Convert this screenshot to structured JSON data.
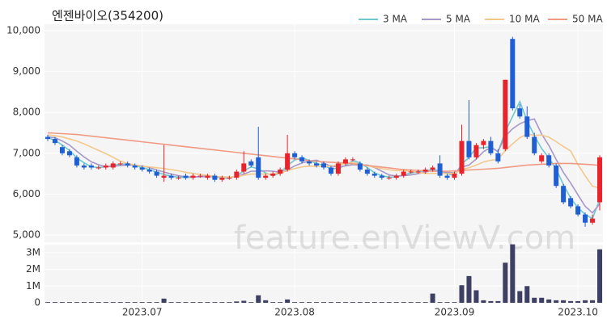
{
  "chart_data": {
    "type": "candlestick",
    "title": "엔젠바이오(354200)",
    "watermark": "feature.enViewV.com",
    "categories": [
      null,
      null,
      null,
      null,
      null,
      null,
      null,
      null,
      null,
      null,
      null,
      null,
      null,
      "2023.07",
      null,
      null,
      null,
      null,
      null,
      null,
      null,
      null,
      null,
      null,
      null,
      null,
      null,
      null,
      null,
      null,
      null,
      null,
      null,
      null,
      "2023.08",
      null,
      null,
      null,
      null,
      null,
      null,
      null,
      null,
      null,
      null,
      null,
      null,
      null,
      null,
      null,
      null,
      null,
      null,
      null,
      null,
      null,
      "2023.09",
      null,
      null,
      null,
      null,
      null,
      null,
      null,
      null,
      null,
      null,
      null,
      null,
      null,
      null,
      null,
      null,
      "2023.10",
      null,
      null,
      null
    ],
    "open": [
      7400,
      7350,
      7150,
      7050,
      6900,
      6700,
      6700,
      6650,
      6650,
      6650,
      6750,
      6750,
      6700,
      6650,
      6600,
      6550,
      6400,
      6450,
      6400,
      6450,
      6400,
      6450,
      6400,
      6450,
      6350,
      6400,
      6400,
      6550,
      6800,
      6900,
      6400,
      6450,
      6500,
      6600,
      7000,
      6900,
      6800,
      6750,
      6750,
      6650,
      6500,
      6750,
      6850,
      6750,
      6600,
      6500,
      6450,
      6400,
      6400,
      6450,
      6550,
      6550,
      6550,
      6600,
      6750,
      6450,
      6400,
      6500,
      7300,
      6900,
      7200,
      7300,
      7000,
      7100,
      9800,
      8100,
      7900,
      7400,
      6800,
      6950,
      6700,
      6200,
      5900,
      5700,
      5500,
      5300,
      5800
    ],
    "high": [
      7450,
      7400,
      7200,
      7100,
      6950,
      6750,
      6750,
      6700,
      6750,
      6800,
      6800,
      6800,
      6750,
      6700,
      6650,
      6600,
      7200,
      6500,
      6450,
      6500,
      6500,
      6500,
      6500,
      6500,
      6450,
      6450,
      6600,
      7050,
      6850,
      7650,
      6500,
      6550,
      6650,
      7450,
      7050,
      6950,
      6850,
      6800,
      6800,
      6700,
      6800,
      6900,
      6900,
      6800,
      6650,
      6550,
      6500,
      6450,
      6500,
      6600,
      6600,
      6600,
      6650,
      6700,
      6950,
      6500,
      6550,
      7700,
      8300,
      7250,
      7350,
      7400,
      7100,
      8800,
      9850,
      8200,
      8150,
      7500,
      7000,
      7000,
      6750,
      6250,
      5950,
      5750,
      5550,
      5500,
      6950
    ],
    "low": [
      7300,
      7200,
      6950,
      6900,
      6650,
      6600,
      6600,
      6600,
      6600,
      6600,
      6700,
      6650,
      6600,
      6550,
      6500,
      6400,
      6300,
      6350,
      6350,
      6350,
      6350,
      6400,
      6350,
      6300,
      6300,
      6350,
      6350,
      6500,
      6650,
      6350,
      6350,
      6400,
      6450,
      6550,
      6850,
      6750,
      6700,
      6650,
      6600,
      6450,
      6450,
      6700,
      6800,
      6550,
      6450,
      6400,
      6350,
      6350,
      6350,
      6400,
      6500,
      6500,
      6500,
      6550,
      6400,
      6350,
      6350,
      6450,
      6850,
      6850,
      7100,
      6950,
      6750,
      7050,
      8050,
      7850,
      7350,
      6950,
      6750,
      6650,
      6150,
      5750,
      5650,
      5450,
      5200,
      5250,
      5600
    ],
    "close": [
      7350,
      7250,
      7000,
      6950,
      6700,
      6650,
      6650,
      6650,
      6700,
      6750,
      6750,
      6700,
      6650,
      6600,
      6550,
      6450,
      6450,
      6400,
      6400,
      6400,
      6450,
      6450,
      6450,
      6350,
      6400,
      6400,
      6550,
      6750,
      6700,
      6400,
      6450,
      6500,
      6600,
      7000,
      6900,
      6800,
      6750,
      6700,
      6650,
      6500,
      6750,
      6850,
      6850,
      6600,
      6500,
      6450,
      6400,
      6400,
      6450,
      6550,
      6550,
      6550,
      6600,
      6650,
      6450,
      6400,
      6500,
      7300,
      6900,
      7200,
      7300,
      7000,
      6800,
      8800,
      8100,
      7900,
      7400,
      7000,
      6950,
      6700,
      6200,
      5800,
      5700,
      5500,
      5300,
      5400,
      6900
    ],
    "up_color": "#e8232b",
    "down_color": "#1f5fd3",
    "ylim": [
      4820,
      10160
    ],
    "yticks": [
      {
        "value": 5000,
        "label": "5,000"
      },
      {
        "value": 6000,
        "label": "6,000"
      },
      {
        "value": 7000,
        "label": "7,000"
      },
      {
        "value": 8000,
        "label": "8,000"
      },
      {
        "value": 9000,
        "label": "9,000"
      },
      {
        "value": 10000,
        "label": "10,000"
      }
    ],
    "grid": true,
    "legend": "top-right",
    "series": [
      {
        "name": "3 MA",
        "color": "#6cc9cf",
        "values": [
          7380,
          7320,
          7200,
          7067,
          6883,
          6767,
          6667,
          6650,
          6667,
          6700,
          6733,
          6733,
          6700,
          6650,
          6600,
          6533,
          6483,
          6433,
          6417,
          6400,
          6417,
          6433,
          6450,
          6417,
          6400,
          6383,
          6450,
          6567,
          6667,
          6617,
          6517,
          6450,
          6517,
          6700,
          6833,
          6900,
          6817,
          6750,
          6700,
          6617,
          6633,
          6700,
          6817,
          6767,
          6650,
          6517,
          6450,
          6417,
          6417,
          6467,
          6517,
          6550,
          6567,
          6600,
          6567,
          6500,
          6450,
          6733,
          6900,
          7133,
          7133,
          7167,
          7033,
          7533,
          7900,
          8267,
          7800,
          7433,
          7117,
          6883,
          6617,
          6233,
          5900,
          5667,
          5500,
          5400,
          5867
        ]
      },
      {
        "name": "5 MA",
        "color": "#a898c8",
        "values": [
          7400,
          7380,
          7300,
          7200,
          7050,
          6910,
          6790,
          6720,
          6670,
          6680,
          6700,
          6710,
          6710,
          6690,
          6650,
          6590,
          6540,
          6490,
          6450,
          6420,
          6420,
          6420,
          6430,
          6420,
          6420,
          6410,
          6430,
          6490,
          6560,
          6560,
          6570,
          6560,
          6530,
          6590,
          6690,
          6760,
          6810,
          6830,
          6760,
          6680,
          6670,
          6690,
          6720,
          6710,
          6710,
          6650,
          6560,
          6470,
          6440,
          6450,
          6470,
          6500,
          6540,
          6580,
          6560,
          6530,
          6520,
          6660,
          6710,
          6860,
          7040,
          7140,
          7040,
          7420,
          7600,
          7720,
          7800,
          7840,
          7470,
          7190,
          6850,
          6530,
          6270,
          5980,
          5700,
          5540,
          5760
        ]
      },
      {
        "name": "10 MA",
        "color": "#f4c88c",
        "values": [
          7450,
          7430,
          7400,
          7350,
          7300,
          7230,
          7150,
          7070,
          6990,
          6900,
          6805,
          6750,
          6715,
          6680,
          6665,
          6645,
          6625,
          6600,
          6570,
          6535,
          6505,
          6480,
          6460,
          6435,
          6420,
          6415,
          6425,
          6460,
          6490,
          6490,
          6490,
          6495,
          6510,
          6575,
          6625,
          6665,
          6685,
          6680,
          6675,
          6685,
          6715,
          6750,
          6775,
          6735,
          6695,
          6660,
          6625,
          6595,
          6575,
          6580,
          6560,
          6530,
          6505,
          6510,
          6505,
          6500,
          6510,
          6600,
          6645,
          6710,
          6785,
          6830,
          6850,
          7065,
          7230,
          7380,
          7470,
          7440,
          7445,
          7395,
          7285,
          7165,
          7055,
          6725,
          6445,
          6195,
          6145
        ]
      },
      {
        "name": "50 MA",
        "color": "#f09a84",
        "values": [
          7500,
          7490,
          7480,
          7470,
          7460,
          7440,
          7420,
          7400,
          7380,
          7360,
          7340,
          7320,
          7300,
          7280,
          7260,
          7240,
          7220,
          7200,
          7180,
          7160,
          7140,
          7120,
          7100,
          7080,
          7060,
          7040,
          7020,
          7000,
          6980,
          6960,
          6940,
          6920,
          6900,
          6880,
          6860,
          6840,
          6820,
          6800,
          6790,
          6780,
          6770,
          6760,
          6740,
          6720,
          6700,
          6680,
          6660,
          6640,
          6620,
          6600,
          6590,
          6580,
          6570,
          6560,
          6560,
          6560,
          6570,
          6580,
          6590,
          6600,
          6610,
          6620,
          6630,
          6650,
          6670,
          6690,
          6710,
          6720,
          6730,
          6740,
          6750,
          6750,
          6750,
          6740,
          6730,
          6720,
          6700
        ]
      }
    ],
    "volume": {
      "color": "#3d3f63",
      "values": [
        40000,
        40000,
        40000,
        40000,
        40000,
        40000,
        40000,
        40000,
        40000,
        40000,
        40000,
        40000,
        40000,
        40000,
        40000,
        40000,
        250000,
        40000,
        40000,
        40000,
        40000,
        40000,
        40000,
        40000,
        40000,
        40000,
        80000,
        120000,
        40000,
        450000,
        150000,
        40000,
        40000,
        200000,
        40000,
        40000,
        40000,
        40000,
        40000,
        40000,
        40000,
        40000,
        40000,
        40000,
        40000,
        40000,
        40000,
        40000,
        40000,
        40000,
        40000,
        40000,
        40000,
        550000,
        40000,
        40000,
        40000,
        1050000,
        1600000,
        750000,
        150000,
        100000,
        100000,
        2400000,
        3500000,
        700000,
        1000000,
        300000,
        300000,
        200000,
        150000,
        150000,
        100000,
        100000,
        150000,
        150000,
        3200000
      ],
      "ylim": [
        -50000,
        3480000
      ],
      "yticks": [
        0,
        {
          "value": 1000000,
          "label": "1M"
        },
        {
          "value": 2000000,
          "label": "2M"
        },
        {
          "value": 3000000,
          "label": "3M"
        }
      ]
    }
  }
}
